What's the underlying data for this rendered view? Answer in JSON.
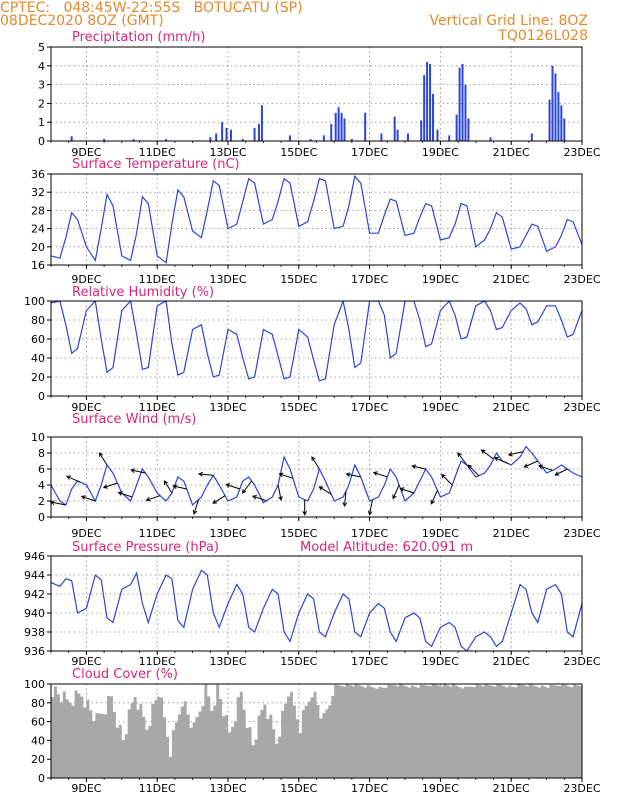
{
  "header": {
    "left_line1": "CPTEC:   048:45W-22:55S   BOTUCATU (SP)",
    "left_line2": "08DEC2020 8OZ (GMT)",
    "right_line1": "Vertical Grid Line: 8OZ",
    "right_line2": "TQ0126L028"
  },
  "colors": {
    "title": "#d6257a",
    "header": "#e08a2c",
    "series": "#2b46d6",
    "cloud": "#a8a8a8",
    "axis": "#000000"
  },
  "x_axis": {
    "days": [
      "9DEC",
      "11DEC",
      "13DEC",
      "15DEC",
      "17DEC",
      "19DEC",
      "21DEC",
      "23DEC"
    ],
    "start_hour": 0,
    "end_hour": 360
  },
  "chart_data": [
    {
      "type": "bar",
      "title": "Precipitation (mm/h)",
      "ylim": [
        0,
        5
      ],
      "yticks": [
        "0",
        "1",
        "2",
        "3",
        "4",
        "5"
      ],
      "events": [
        {
          "h": 14,
          "v": 0.25
        },
        {
          "h": 36,
          "v": 0.1
        },
        {
          "h": 56,
          "v": 0.1
        },
        {
          "h": 78,
          "v": 0.1
        },
        {
          "h": 108,
          "v": 0.2
        },
        {
          "h": 112,
          "v": 0.4
        },
        {
          "h": 116,
          "v": 1.0
        },
        {
          "h": 119,
          "v": 0.7
        },
        {
          "h": 122,
          "v": 0.6
        },
        {
          "h": 130,
          "v": 0.1
        },
        {
          "h": 138,
          "v": 0.7
        },
        {
          "h": 141,
          "v": 0.9
        },
        {
          "h": 143,
          "v": 1.9
        },
        {
          "h": 162,
          "v": 0.3
        },
        {
          "h": 176,
          "v": 0.1
        },
        {
          "h": 185,
          "v": 0.3
        },
        {
          "h": 190,
          "v": 0.9
        },
        {
          "h": 193,
          "v": 1.5
        },
        {
          "h": 195,
          "v": 1.8
        },
        {
          "h": 197,
          "v": 1.5
        },
        {
          "h": 199,
          "v": 1.2
        },
        {
          "h": 204,
          "v": 0.1
        },
        {
          "h": 213,
          "v": 1.5
        },
        {
          "h": 224,
          "v": 0.4
        },
        {
          "h": 233,
          "v": 1.3
        },
        {
          "h": 235,
          "v": 0.6
        },
        {
          "h": 242,
          "v": 0.4
        },
        {
          "h": 251,
          "v": 1.1
        },
        {
          "h": 253,
          "v": 3.5
        },
        {
          "h": 255,
          "v": 4.2
        },
        {
          "h": 257,
          "v": 4.1
        },
        {
          "h": 259,
          "v": 2.5
        },
        {
          "h": 262,
          "v": 0.6
        },
        {
          "h": 270,
          "v": 0.3
        },
        {
          "h": 275,
          "v": 1.4
        },
        {
          "h": 277,
          "v": 3.9
        },
        {
          "h": 279,
          "v": 4.1
        },
        {
          "h": 281,
          "v": 3.0
        },
        {
          "h": 283,
          "v": 1.2
        },
        {
          "h": 298,
          "v": 0.2
        },
        {
          "h": 326,
          "v": 0.4
        },
        {
          "h": 338,
          "v": 2.2
        },
        {
          "h": 340,
          "v": 4.0
        },
        {
          "h": 342,
          "v": 3.6
        },
        {
          "h": 344,
          "v": 2.6
        },
        {
          "h": 346,
          "v": 1.9
        },
        {
          "h": 348,
          "v": 1.2
        }
      ]
    },
    {
      "type": "line",
      "title": "Surface Temperature (nC)",
      "ylim": [
        16,
        36
      ],
      "yticks": [
        "16",
        "20",
        "24",
        "28",
        "32",
        "36"
      ],
      "x": [
        0,
        6,
        10,
        14,
        18,
        24,
        30,
        34,
        38,
        42,
        48,
        54,
        58,
        62,
        66,
        72,
        78,
        82,
        86,
        90,
        96,
        102,
        106,
        110,
        114,
        120,
        126,
        130,
        134,
        138,
        144,
        150,
        154,
        158,
        162,
        168,
        174,
        178,
        182,
        186,
        192,
        198,
        202,
        206,
        210,
        216,
        222,
        226,
        230,
        234,
        240,
        246,
        250,
        254,
        258,
        264,
        270,
        274,
        278,
        282,
        288,
        294,
        298,
        302,
        306,
        312,
        318,
        322,
        326,
        330,
        336,
        342,
        346,
        350,
        354,
        360
      ],
      "values": [
        18,
        17.5,
        22,
        27.5,
        26,
        20,
        17,
        24,
        31.5,
        29,
        18,
        17,
        23,
        31,
        29.5,
        18,
        16.5,
        25,
        32.5,
        31,
        23.5,
        22,
        28,
        34.5,
        33.5,
        24,
        25,
        30,
        35,
        34,
        25,
        26,
        30,
        35,
        34,
        24.5,
        25.5,
        30,
        35,
        34.5,
        24,
        24.5,
        29,
        35.5,
        34,
        23,
        23,
        27,
        30.5,
        30,
        22.5,
        23,
        26.5,
        29.5,
        29,
        21.5,
        22,
        25,
        29.5,
        29,
        20,
        21.5,
        24,
        27.5,
        26.5,
        19.5,
        20,
        22.5,
        25,
        24.5,
        19,
        20,
        22.5,
        26,
        25.5,
        20.5
      ]
    },
    {
      "type": "line",
      "title": "Relative Humidity (%)",
      "ylim": [
        0,
        100
      ],
      "yticks": [
        "0",
        "20",
        "40",
        "60",
        "80",
        "100"
      ],
      "x": [
        0,
        6,
        10,
        14,
        18,
        24,
        30,
        34,
        38,
        42,
        48,
        54,
        58,
        62,
        66,
        72,
        78,
        82,
        86,
        90,
        96,
        102,
        106,
        110,
        114,
        120,
        126,
        130,
        134,
        138,
        144,
        150,
        154,
        158,
        162,
        168,
        174,
        178,
        182,
        186,
        192,
        198,
        202,
        206,
        210,
        216,
        222,
        226,
        230,
        234,
        240,
        246,
        250,
        254,
        258,
        264,
        270,
        274,
        278,
        282,
        288,
        294,
        298,
        302,
        306,
        312,
        318,
        322,
        326,
        330,
        336,
        342,
        346,
        350,
        354,
        360
      ],
      "values": [
        98,
        100,
        75,
        45,
        50,
        90,
        100,
        60,
        25,
        30,
        90,
        100,
        65,
        28,
        30,
        95,
        100,
        55,
        22,
        25,
        70,
        75,
        45,
        20,
        22,
        70,
        65,
        40,
        18,
        20,
        70,
        65,
        42,
        18,
        20,
        70,
        62,
        38,
        16,
        18,
        75,
        100,
        70,
        30,
        35,
        100,
        100,
        85,
        40,
        45,
        100,
        100,
        80,
        52,
        55,
        90,
        100,
        85,
        60,
        62,
        95,
        100,
        90,
        70,
        72,
        90,
        98,
        92,
        75,
        78,
        95,
        95,
        80,
        62,
        65,
        90
      ]
    },
    {
      "type": "line",
      "title": "Surface Wind (m/s)",
      "ylim": [
        0,
        10
      ],
      "yticks": [
        "0",
        "2",
        "4",
        "6",
        "8",
        "10"
      ],
      "x": [
        0,
        6,
        10,
        14,
        18,
        24,
        30,
        34,
        38,
        42,
        48,
        54,
        58,
        62,
        66,
        72,
        78,
        82,
        86,
        90,
        96,
        102,
        106,
        110,
        114,
        120,
        126,
        130,
        134,
        138,
        144,
        150,
        154,
        158,
        162,
        168,
        174,
        178,
        182,
        186,
        192,
        198,
        202,
        206,
        210,
        216,
        222,
        226,
        230,
        234,
        240,
        246,
        250,
        254,
        258,
        264,
        270,
        274,
        278,
        282,
        288,
        294,
        298,
        302,
        306,
        312,
        318,
        322,
        326,
        330,
        336,
        342,
        346,
        350,
        354,
        360
      ],
      "values": [
        4,
        2,
        1.5,
        3.5,
        4.5,
        4,
        2,
        4,
        6.5,
        5.5,
        3,
        2,
        4,
        6,
        5,
        3,
        2,
        3,
        5,
        4.5,
        1.5,
        2.5,
        4,
        5.2,
        4,
        2,
        2.5,
        4.5,
        5,
        4,
        1.8,
        2.5,
        4,
        7.5,
        6,
        2.5,
        2,
        3.5,
        6,
        4.5,
        2,
        2.5,
        4,
        6.5,
        5,
        2,
        2.5,
        4,
        6,
        5,
        2,
        3,
        4.5,
        6,
        5,
        2.5,
        3,
        5,
        7,
        6.5,
        5,
        5.5,
        6.5,
        8,
        7,
        6.5,
        7.5,
        8.8,
        8,
        7,
        5.5,
        6,
        6.5,
        6,
        5.5,
        5
      ],
      "vectors": [
        {
          "h": 10,
          "u": -1,
          "v": 0.2
        },
        {
          "h": 20,
          "u": -0.9,
          "v": 0.4
        },
        {
          "h": 30,
          "u": -0.9,
          "v": 0.3
        },
        {
          "h": 38,
          "u": -0.5,
          "v": 0.8
        },
        {
          "h": 45,
          "u": -0.9,
          "v": -0.3
        },
        {
          "h": 55,
          "u": -0.9,
          "v": 0.3
        },
        {
          "h": 64,
          "u": -0.95,
          "v": 0.2
        },
        {
          "h": 74,
          "u": -0.9,
          "v": -0.3
        },
        {
          "h": 82,
          "u": -0.5,
          "v": 0.8
        },
        {
          "h": 92,
          "u": -0.9,
          "v": 0.2
        },
        {
          "h": 100,
          "u": -0.3,
          "v": -0.95
        },
        {
          "h": 110,
          "u": -0.95,
          "v": 0.1
        },
        {
          "h": 118,
          "u": -0.8,
          "v": -0.5
        },
        {
          "h": 128,
          "u": -0.9,
          "v": 0.3
        },
        {
          "h": 136,
          "u": -0.6,
          "v": -0.8
        },
        {
          "h": 146,
          "u": -0.9,
          "v": 0.3
        },
        {
          "h": 154,
          "u": 0.2,
          "v": -1
        },
        {
          "h": 164,
          "u": -0.9,
          "v": 0.3
        },
        {
          "h": 172,
          "u": 0,
          "v": -1
        },
        {
          "h": 182,
          "u": -0.5,
          "v": 0.8
        },
        {
          "h": 190,
          "u": -0.8,
          "v": 0.5
        },
        {
          "h": 200,
          "u": -0.1,
          "v": -1
        },
        {
          "h": 210,
          "u": -0.95,
          "v": 0.2
        },
        {
          "h": 218,
          "u": -0.2,
          "v": -1
        },
        {
          "h": 228,
          "u": -0.9,
          "v": 0.3
        },
        {
          "h": 236,
          "u": -0.4,
          "v": -0.9
        },
        {
          "h": 246,
          "u": -0.9,
          "v": 0.3
        },
        {
          "h": 254,
          "u": -0.9,
          "v": 0.2
        },
        {
          "h": 262,
          "u": -0.4,
          "v": -0.9
        },
        {
          "h": 272,
          "u": -0.7,
          "v": 0.7
        },
        {
          "h": 282,
          "u": -0.6,
          "v": 0.8
        },
        {
          "h": 290,
          "u": -0.7,
          "v": 0.7
        },
        {
          "h": 300,
          "u": -0.8,
          "v": 0.6
        },
        {
          "h": 310,
          "u": -0.9,
          "v": 0.4
        },
        {
          "h": 320,
          "u": -0.95,
          "v": -0.2
        },
        {
          "h": 330,
          "u": -0.9,
          "v": -0.4
        },
        {
          "h": 340,
          "u": -0.9,
          "v": 0.3
        },
        {
          "h": 350,
          "u": -0.8,
          "v": -0.4
        }
      ]
    },
    {
      "type": "line",
      "title": "Surface Pressure (hPa)",
      "annotation": "Model Altitude: 620.091 m",
      "ylim": [
        936,
        946
      ],
      "yticks": [
        "936",
        "938",
        "940",
        "942",
        "944",
        "946"
      ],
      "x": [
        0,
        6,
        10,
        14,
        18,
        24,
        30,
        34,
        38,
        42,
        48,
        54,
        58,
        62,
        66,
        72,
        78,
        82,
        86,
        90,
        96,
        102,
        106,
        110,
        114,
        120,
        126,
        130,
        134,
        138,
        144,
        150,
        154,
        158,
        162,
        168,
        174,
        178,
        182,
        186,
        192,
        198,
        202,
        206,
        210,
        216,
        222,
        226,
        230,
        234,
        240,
        246,
        250,
        254,
        258,
        264,
        270,
        274,
        278,
        282,
        288,
        294,
        298,
        302,
        306,
        312,
        318,
        322,
        326,
        330,
        336,
        342,
        346,
        350,
        354,
        360
      ],
      "values": [
        943.2,
        942.8,
        943.6,
        943.4,
        940,
        940.5,
        944,
        943.5,
        939.5,
        939,
        942.5,
        943,
        944.2,
        941,
        939,
        942,
        944,
        943.6,
        939.2,
        938.5,
        942.5,
        944.5,
        944,
        940,
        938.5,
        941,
        943,
        942,
        938.5,
        938,
        940.5,
        942.5,
        942,
        938,
        937,
        940,
        942,
        941.5,
        938,
        937.5,
        940,
        942,
        941.5,
        938,
        937.5,
        940,
        941,
        940.5,
        938,
        937,
        939.5,
        940,
        939.5,
        937,
        936.5,
        938.5,
        939,
        938.5,
        936.5,
        936,
        937.5,
        938,
        937.5,
        936.5,
        937,
        940,
        943,
        942.5,
        940,
        939,
        942.5,
        943,
        942,
        938,
        937.5,
        941
      ]
    },
    {
      "type": "area",
      "title": "Cloud Cover (%)",
      "ylim": [
        0,
        100
      ],
      "yticks": [
        "0",
        "20",
        "40",
        "60",
        "80",
        "100"
      ],
      "x": [
        0,
        10,
        20,
        30,
        40,
        48,
        56,
        64,
        72,
        80,
        88,
        96,
        104,
        108,
        112,
        120,
        128,
        136,
        144,
        152,
        160,
        168,
        176,
        184,
        192,
        200,
        208,
        216,
        224,
        232,
        240,
        248,
        256,
        264,
        272,
        280,
        288,
        296,
        304,
        312,
        320,
        328,
        336,
        344,
        352,
        360
      ],
      "values": [
        95,
        80,
        90,
        60,
        85,
        40,
        88,
        55,
        92,
        30,
        85,
        50,
        95,
        75,
        97,
        45,
        90,
        35,
        80,
        40,
        92,
        55,
        95,
        60,
        98,
        99,
        98,
        97,
        96,
        99,
        98,
        97,
        99,
        99,
        98,
        96,
        99,
        98,
        99,
        97,
        99,
        98,
        97,
        99,
        98,
        99
      ]
    }
  ]
}
